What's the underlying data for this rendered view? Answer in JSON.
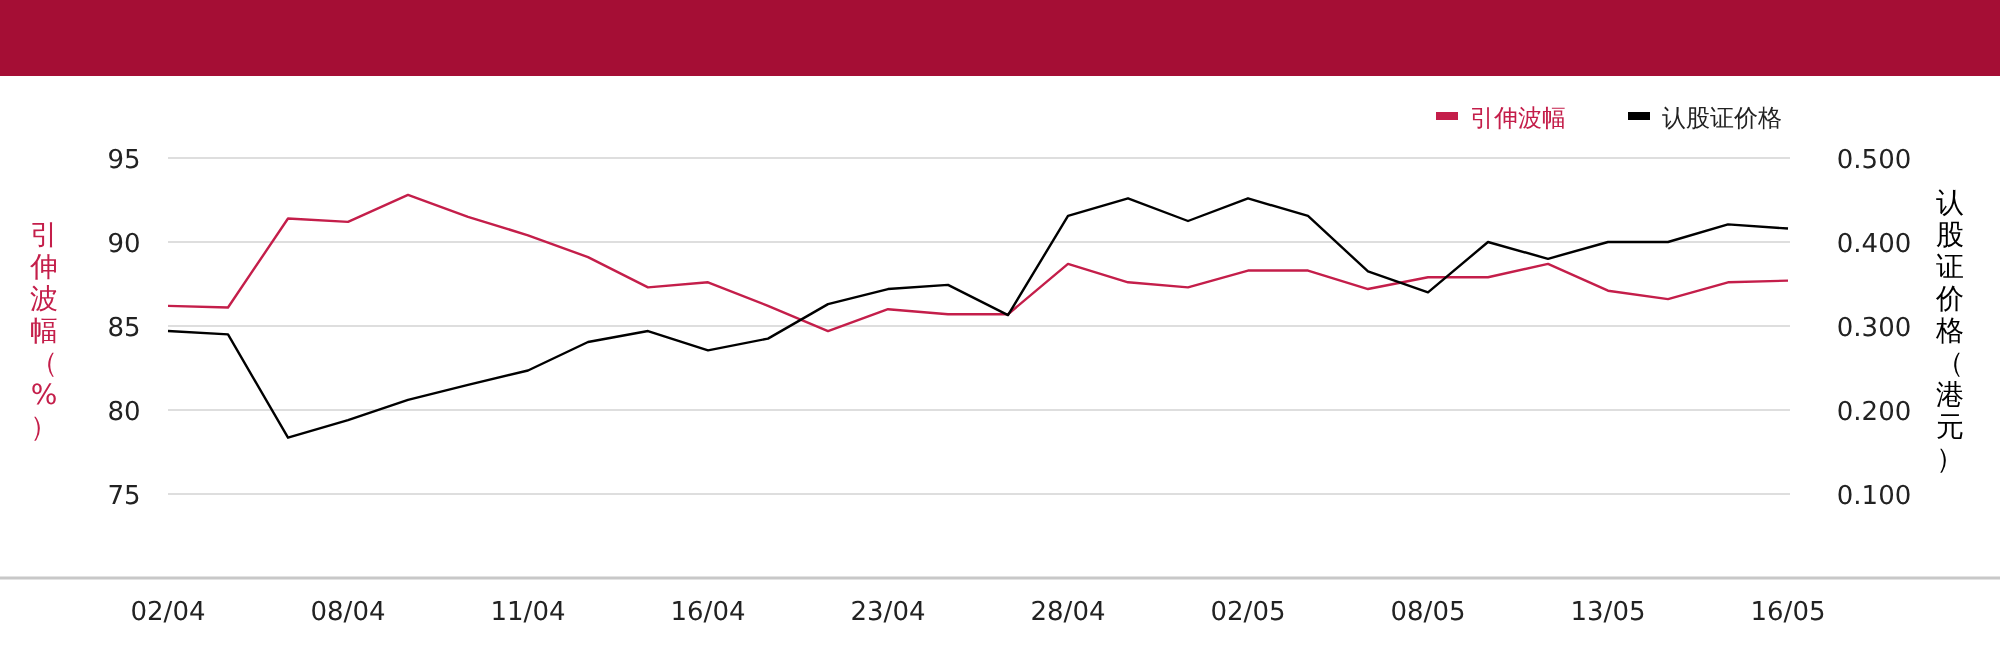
{
  "chart_data": {
    "type": "line",
    "categories": [
      "02/04",
      null,
      null,
      "08/04",
      null,
      null,
      "11/04",
      null,
      null,
      "16/04",
      null,
      null,
      "23/04",
      null,
      null,
      "28/04",
      null,
      null,
      "02/05",
      null,
      null,
      "08/05",
      null,
      null,
      "13/05",
      null,
      null,
      "16/05"
    ],
    "series": [
      {
        "name": "引伸波幅",
        "color": "#c41e4a",
        "values": [
          86.2,
          86.1,
          91.4,
          91.2,
          92.8,
          91.5,
          90.4,
          89.1,
          87.3,
          87.6,
          86.2,
          84.7,
          86.0,
          85.7,
          85.7,
          88.7,
          87.6,
          87.3,
          88.3,
          88.3,
          87.2,
          87.9,
          87.9,
          88.7,
          87.1,
          86.6,
          87.6,
          87.7
        ]
      },
      {
        "name": "认股证价格",
        "color": "#000000",
        "axis": "y2",
        "values": [
          0.294,
          0.29,
          0.167,
          0.188,
          0.212,
          0.23,
          0.247,
          0.281,
          0.294,
          0.271,
          0.285,
          0.326,
          0.344,
          0.349,
          0.313,
          0.431,
          0.452,
          0.425,
          0.452,
          0.431,
          0.365,
          0.34,
          0.4,
          0.38,
          0.4,
          0.4,
          0.421,
          0.416
        ]
      }
    ],
    "ylabel": "引伸波幅（%）",
    "y2label": "认股证价格（港元）",
    "ylim": [
      70,
      95
    ],
    "yticks": [
      75,
      80,
      85,
      90,
      95
    ],
    "y2lim": [
      0,
      0.5
    ],
    "y2ticks": [
      {
        "value": 0.1,
        "label": "0.100"
      },
      {
        "value": 0.2,
        "label": "0.200"
      },
      {
        "value": 0.3,
        "label": "0.300"
      },
      {
        "value": 0.4,
        "label": "0.400"
      },
      {
        "value": 0.5,
        "label": "0.500"
      }
    ],
    "grid": "y",
    "legend": "top right"
  }
}
